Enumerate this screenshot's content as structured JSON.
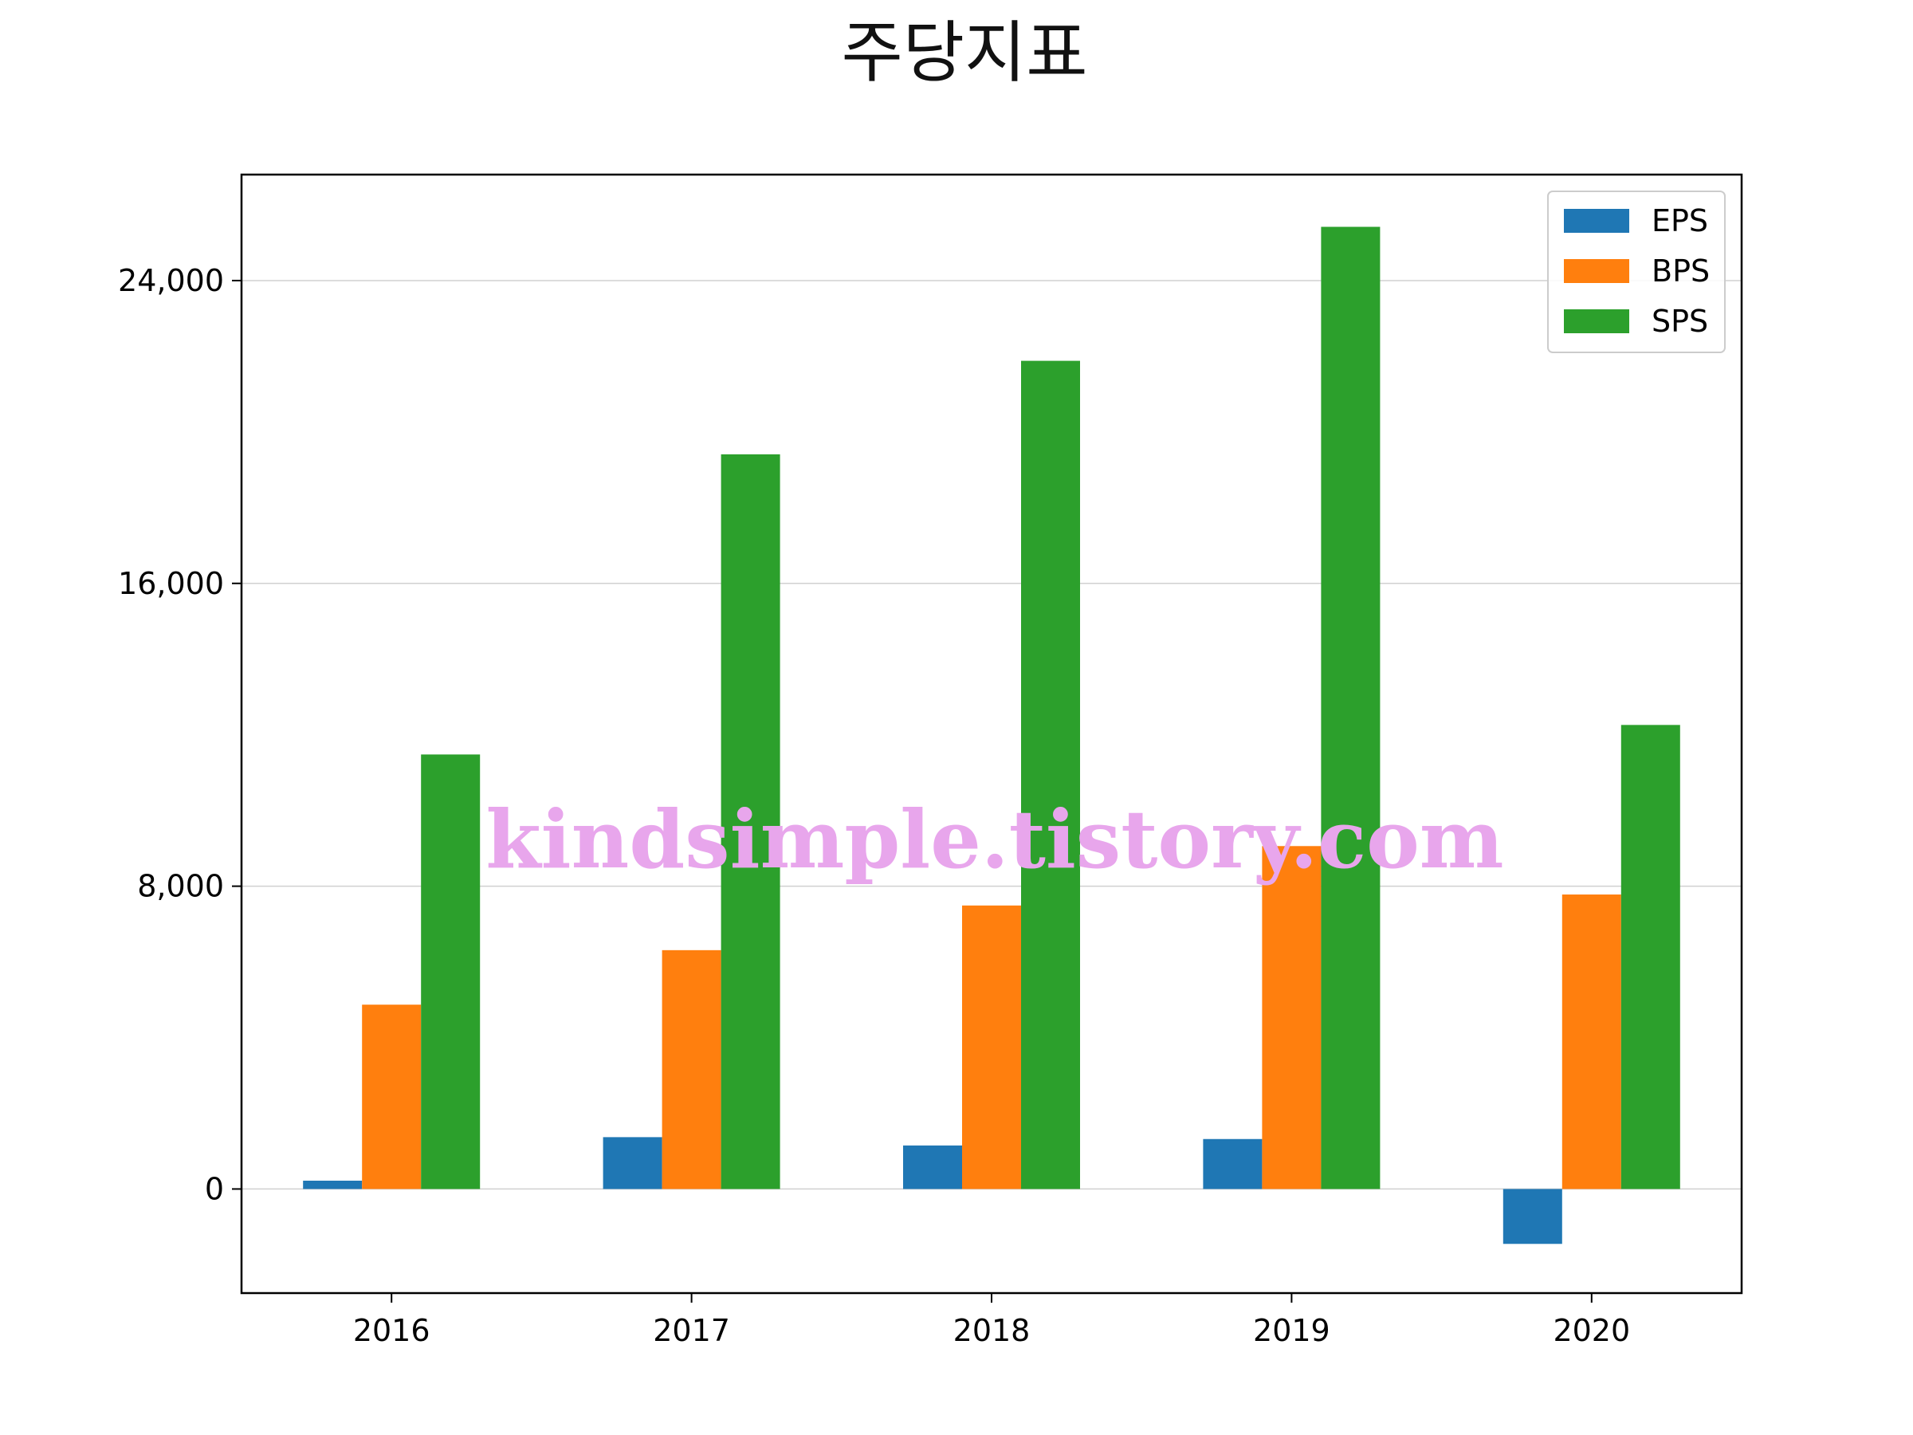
{
  "chart_data": {
    "type": "bar",
    "title": "주당지표",
    "xlabel": "",
    "ylabel": "",
    "categories": [
      "2016",
      "2017",
      "2018",
      "2019",
      "2020"
    ],
    "series": [
      {
        "name": "EPS",
        "color": "#1f77b4",
        "values": [
          220,
          1370,
          1150,
          1320,
          -1450
        ]
      },
      {
        "name": "BPS",
        "color": "#ff7f0e",
        "values": [
          4870,
          6310,
          7490,
          9060,
          7780
        ]
      },
      {
        "name": "SPS",
        "color": "#2ca02c",
        "values": [
          11480,
          19410,
          21880,
          25420,
          12260
        ]
      }
    ],
    "ylim": [
      -2750,
      26800
    ],
    "yticks": [
      0,
      8000,
      16000,
      24000
    ],
    "ytick_labels": [
      "0",
      "8,000",
      "16,000",
      "24,000"
    ],
    "grid": "y",
    "legend_position": "top-right",
    "watermark": "kindsimple.tistory.com"
  }
}
